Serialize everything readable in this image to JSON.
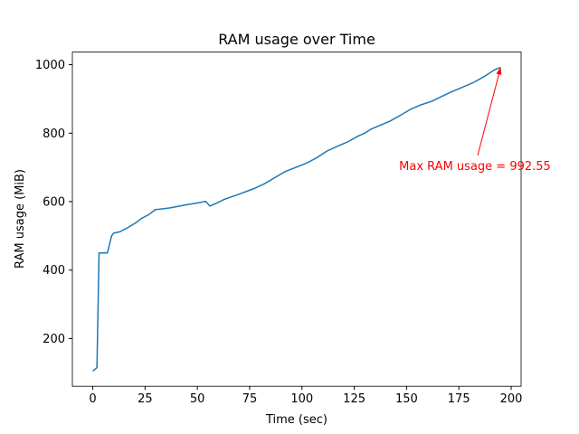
{
  "chart_data": {
    "type": "line",
    "title": "RAM usage over Time",
    "x_label": "Time (sec)",
    "y_label": "RAM usage (MiB)",
    "x": [
      0,
      2,
      3,
      7,
      9,
      10,
      13,
      17,
      21,
      23,
      27,
      30,
      32,
      37,
      44,
      50,
      54,
      56,
      60,
      63,
      70,
      77,
      82,
      87,
      92,
      97,
      102,
      107,
      112,
      117,
      122,
      127,
      130,
      133,
      137,
      142,
      147,
      152,
      157,
      162,
      167,
      172,
      177,
      182,
      187,
      192,
      195
    ],
    "series": [
      {
        "name": "RAM usage",
        "color": "#1f77b4",
        "values": [
          105,
          115,
          450,
          450,
          500,
          508,
          512,
          525,
          540,
          550,
          563,
          577,
          578,
          582,
          590,
          596,
          601,
          587,
          598,
          607,
          622,
          638,
          652,
          670,
          688,
          700,
          712,
          728,
          748,
          762,
          775,
          792,
          800,
          812,
          822,
          835,
          852,
          870,
          883,
          893,
          908,
          922,
          935,
          948,
          965,
          985,
          992.55
        ]
      }
    ],
    "xlim": [
      -9.75,
      204.75
    ],
    "xticks": [
      0,
      25,
      50,
      75,
      100,
      125,
      150,
      175,
      200
    ],
    "ylim": [
      60.7,
      1036.9
    ],
    "yticks": [
      200,
      400,
      600,
      800,
      1000
    ],
    "grid": false,
    "annotation": {
      "text": "Max RAM usage = 992.55",
      "color": "red"
    }
  }
}
